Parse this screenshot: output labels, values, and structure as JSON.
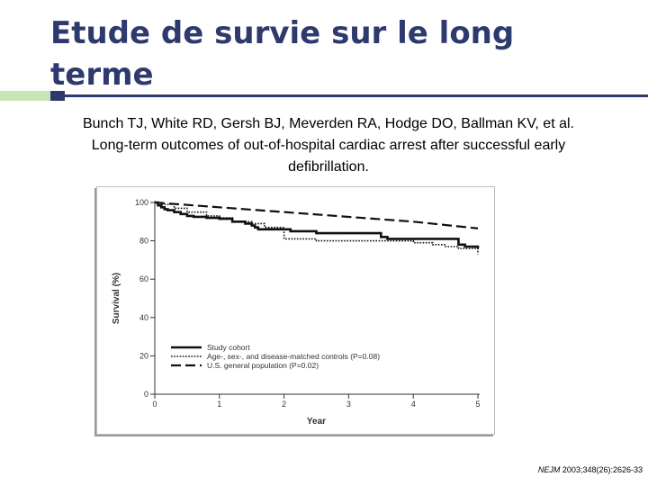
{
  "slide": {
    "title": "Etude de survie sur le long terme",
    "citation": "Bunch TJ, White RD, Gersh BJ, Meverden RA, Hodge DO, Ballman KV, et al. Long-term outcomes of out-of-hospital cardiac arrest after successful early defibrillation.",
    "reference_journal": "NEJM",
    "reference_rest": " 2003;348(26):2626-33"
  },
  "colors": {
    "title": "#2e3a6e",
    "accent_light": "#c8e6b4",
    "accent_dark": "#2e3a6e"
  },
  "chart_data": {
    "type": "line",
    "xlabel": "Year",
    "ylabel": "Survival (%)",
    "xlim": [
      0,
      5
    ],
    "ylim": [
      0,
      100
    ],
    "xticks": [
      0,
      1,
      2,
      3,
      4,
      5
    ],
    "yticks": [
      0,
      20,
      40,
      60,
      80,
      100
    ],
    "legend_position": "bottom-left",
    "series": [
      {
        "name": "Study cohort",
        "style": "solid",
        "x": [
          0,
          0.05,
          0.1,
          0.15,
          0.2,
          0.3,
          0.4,
          0.5,
          0.6,
          0.8,
          1.0,
          1.2,
          1.4,
          1.5,
          1.55,
          1.6,
          2.0,
          2.1,
          2.5,
          3.0,
          3.5,
          3.6,
          4.0,
          4.5,
          4.7,
          4.8,
          5.0
        ],
        "y": [
          100,
          98.5,
          97.5,
          96.5,
          96,
          95,
          94,
          93,
          92.5,
          92,
          91.5,
          90,
          89,
          88,
          87,
          86,
          86,
          85,
          84,
          84,
          82,
          81,
          81,
          81,
          78,
          77,
          76
        ]
      },
      {
        "name": "Age-, sex-, and disease-matched controls (P=0.08)",
        "style": "dotted",
        "x": [
          0,
          0.1,
          0.3,
          0.5,
          0.8,
          1.0,
          1.2,
          1.5,
          1.7,
          2.0,
          2.5,
          3.0,
          3.5,
          4.0,
          4.3,
          4.5,
          4.7,
          5.0
        ],
        "y": [
          100,
          99,
          97,
          95,
          93,
          92,
          90,
          89,
          87,
          81,
          80,
          80,
          80,
          79,
          78,
          77,
          76,
          73
        ]
      },
      {
        "name": "U.S. general population (P=0.02)",
        "style": "dashed",
        "x": [
          0,
          1,
          2,
          3,
          4,
          5
        ],
        "y": [
          100,
          97.5,
          95,
          92.5,
          90,
          86.5
        ]
      }
    ]
  }
}
